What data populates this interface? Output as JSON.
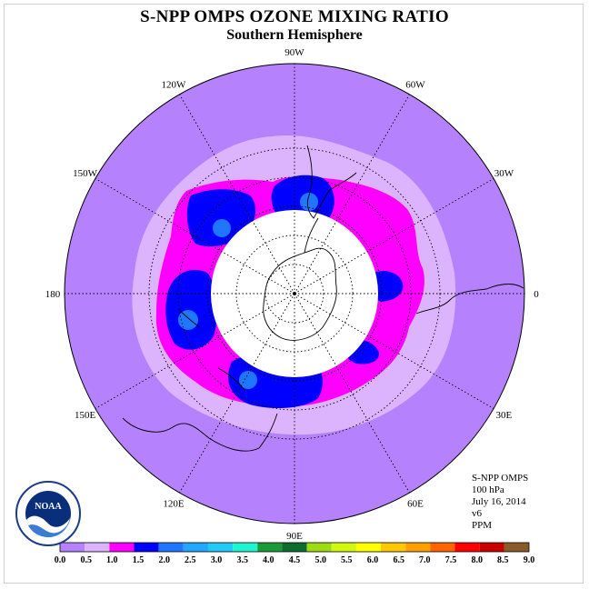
{
  "title": "S-NPP OMPS OZONE MIXING RATIO",
  "subtitle": "Southern Hemisphere",
  "longitude_labels": [
    {
      "text": "90W",
      "lon": -90
    },
    {
      "text": "60W",
      "lon": -60
    },
    {
      "text": "30W",
      "lon": -30
    },
    {
      "text": "0",
      "lon": 0
    },
    {
      "text": "30E",
      "lon": 30
    },
    {
      "text": "60E",
      "lon": 60
    },
    {
      "text": "90E",
      "lon": 90
    },
    {
      "text": "120E",
      "lon": 120
    },
    {
      "text": "150E",
      "lon": 150
    },
    {
      "text": "180",
      "lon": 180
    },
    {
      "text": "150W",
      "lon": -150
    },
    {
      "text": "120W",
      "lon": -120
    }
  ],
  "info": {
    "instrument": "S-NPP OMPS",
    "level": "100 hPa",
    "date": "July 16, 2014",
    "version": "v6",
    "units": "PPM"
  },
  "logo": {
    "text": "NOAA",
    "ring_text": "NATIONAL OCEANIC AND ATMOSPHERIC ADMINISTRATION · U.S. DEPARTMENT OF COMMERCE"
  },
  "colorbar": {
    "colors": [
      "#b681fd",
      "#dcb4fd",
      "#ff00ff",
      "#0000ff",
      "#1f77ff",
      "#22a6ff",
      "#21c9f5",
      "#1ff5d0",
      "#1b9a3a",
      "#0d6c2e",
      "#9ddc11",
      "#d2f711",
      "#ffff00",
      "#ffc800",
      "#ffa000",
      "#ff6400",
      "#ff0000",
      "#c80000",
      "#8b5a2b"
    ],
    "labels": [
      "0.0",
      "0.5",
      "1.0",
      "1.5",
      "2.0",
      "2.5",
      "3.0",
      "3.5",
      "4.0",
      "4.5",
      "5.0",
      "5.5",
      "6.0",
      "6.5",
      "7.0",
      "7.5",
      "8.0",
      "8.5",
      "9.0"
    ]
  }
}
